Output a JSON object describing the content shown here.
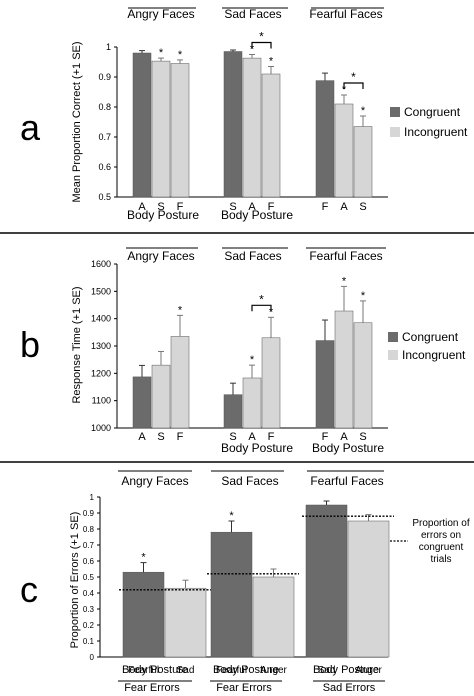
{
  "colors": {
    "congruent": "#6b6b6b",
    "incongruent": "#d6d6d6",
    "asterisk_orange": "#e8742c",
    "asterisk_black": "#000000",
    "divider": "#000000"
  },
  "chart_data": [
    {
      "panel_label": "a",
      "type": "bar",
      "ylabel": "Mean Proportion Correct (+1 SE)",
      "ylim": [
        0.5,
        1
      ],
      "yticks": [
        "0.5",
        "0.6",
        "0.7",
        "0.8",
        "0.9",
        "1"
      ],
      "ytick_values": [
        0.5,
        0.6,
        0.7,
        0.8,
        0.9,
        1.0
      ],
      "legend": [
        "Congruent",
        "Incongruent"
      ],
      "groups": [
        {
          "title": "Angry Faces",
          "xlabel": "Body Posture",
          "bars": [
            {
              "label": "A",
              "value": 0.98,
              "se": 0.008,
              "cond": "congruent",
              "sig": ""
            },
            {
              "label": "S",
              "value": 0.953,
              "se": 0.01,
              "cond": "incongruent",
              "sig": "*"
            },
            {
              "label": "F",
              "value": 0.945,
              "se": 0.012,
              "cond": "incongruent",
              "sig": "*"
            }
          ],
          "bracket": null
        },
        {
          "title": "Sad Faces",
          "xlabel": "Body Posture",
          "bars": [
            {
              "label": "S",
              "value": 0.985,
              "se": 0.005,
              "cond": "congruent",
              "sig": ""
            },
            {
              "label": "A",
              "value": 0.963,
              "se": 0.012,
              "cond": "incongruent",
              "sig": "*"
            },
            {
              "label": "F",
              "value": 0.91,
              "se": 0.025,
              "cond": "incongruent",
              "sig": "*"
            }
          ],
          "bracket": {
            "from": 1,
            "to": 2,
            "label": "*"
          }
        },
        {
          "title": "Fearful Faces",
          "xlabel": "",
          "bars": [
            {
              "label": "F",
              "value": 0.888,
              "se": 0.025,
              "cond": "congruent",
              "sig": ""
            },
            {
              "label": "A",
              "value": 0.81,
              "se": 0.03,
              "cond": "incongruent",
              "sig": "*"
            },
            {
              "label": "S",
              "value": 0.735,
              "se": 0.035,
              "cond": "incongruent",
              "sig": "*"
            }
          ],
          "bracket": {
            "from": 1,
            "to": 2,
            "label": "*"
          }
        }
      ]
    },
    {
      "panel_label": "b",
      "type": "bar",
      "ylabel": "Response Time (+1 SE)",
      "ylim": [
        1000,
        1600
      ],
      "yticks": [
        "1000",
        "1100",
        "1200",
        "1300",
        "1400",
        "1500",
        "1600"
      ],
      "ytick_values": [
        1000,
        1100,
        1200,
        1300,
        1400,
        1500,
        1600
      ],
      "legend": [
        "Congruent",
        "Incongruent"
      ],
      "groups": [
        {
          "title": "Angry Faces",
          "xlabel": "",
          "bars": [
            {
              "label": "A",
              "value": 1187,
              "se": 42,
              "cond": "congruent",
              "sig": ""
            },
            {
              "label": "S",
              "value": 1230,
              "se": 50,
              "cond": "incongruent",
              "sig": ""
            },
            {
              "label": "F",
              "value": 1335,
              "se": 77,
              "cond": "incongruent",
              "sig": "*"
            }
          ],
          "bracket": null
        },
        {
          "title": "Sad Faces",
          "xlabel": "Body Posture",
          "bars": [
            {
              "label": "S",
              "value": 1122,
              "se": 42,
              "cond": "congruent",
              "sig": ""
            },
            {
              "label": "A",
              "value": 1183,
              "se": 47,
              "cond": "incongruent",
              "sig": "*"
            },
            {
              "label": "F",
              "value": 1330,
              "se": 75,
              "cond": "incongruent",
              "sig": "*"
            }
          ],
          "bracket": {
            "from": 1,
            "to": 2,
            "label": "*"
          }
        },
        {
          "title": "Fearful Faces",
          "xlabel": "Body Posture",
          "bars": [
            {
              "label": "F",
              "value": 1320,
              "se": 75,
              "cond": "congruent",
              "sig": ""
            },
            {
              "label": "A",
              "value": 1428,
              "se": 90,
              "cond": "incongruent",
              "sig": "*"
            },
            {
              "label": "S",
              "value": 1385,
              "se": 80,
              "cond": "incongruent",
              "sig": "*"
            }
          ],
          "bracket": null
        }
      ]
    },
    {
      "panel_label": "c",
      "type": "bar",
      "ylabel": "Proportion of Errors (+1 SE)",
      "ylim": [
        0,
        1
      ],
      "yticks": [
        "0",
        "0.1",
        "0.2",
        "0.3",
        "0.4",
        "0.5",
        "0.6",
        "0.7",
        "0.8",
        "0.9",
        "1"
      ],
      "ytick_values": [
        0,
        0.1,
        0.2,
        0.3,
        0.4,
        0.5,
        0.6,
        0.7,
        0.8,
        0.9,
        1.0
      ],
      "legend_note": [
        "Proportion of",
        "errors on",
        "congruent",
        "trials"
      ],
      "groups": [
        {
          "title": "Angry Faces",
          "xlabel": "Body Posture",
          "error_label": "Fear Errors",
          "reference": 0.42,
          "bars": [
            {
              "label": "Fearful",
              "value": 0.53,
              "se": 0.06,
              "cond": "congruent",
              "sig": "*"
            },
            {
              "label": "Sad",
              "value": 0.43,
              "se": 0.05,
              "cond": "incongruent",
              "sig": ""
            }
          ]
        },
        {
          "title": "Sad Faces",
          "xlabel": "Body Posture",
          "error_label": "Fear Errors",
          "reference": 0.52,
          "bars": [
            {
              "label": "Fearful",
              "value": 0.78,
              "se": 0.07,
              "cond": "congruent",
              "sig": "*"
            },
            {
              "label": "Anger",
              "value": 0.5,
              "se": 0.05,
              "cond": "incongruent",
              "sig": ""
            }
          ]
        },
        {
          "title": "Fearful Faces",
          "xlabel": "Body Posture",
          "error_label": "Sad Errors",
          "reference": 0.88,
          "bars": [
            {
              "label": "Sad",
              "value": 0.95,
              "se": 0.025,
              "cond": "congruent",
              "sig": ""
            },
            {
              "label": "Anger",
              "value": 0.85,
              "se": 0.04,
              "cond": "incongruent",
              "sig": ""
            }
          ]
        }
      ]
    }
  ]
}
